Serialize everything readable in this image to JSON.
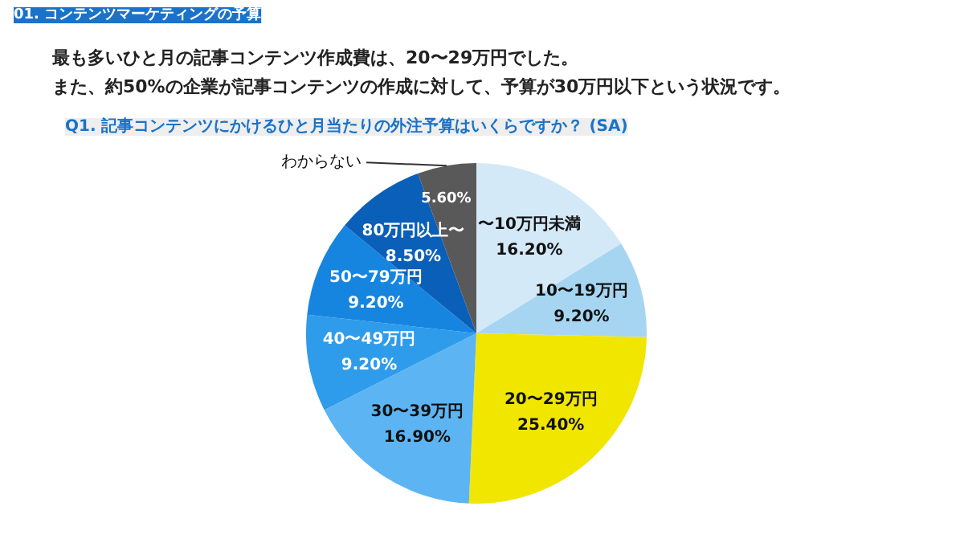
{
  "chart_data": {
    "type": "pie",
    "title": "01. コンテンツマーケティングの予算",
    "subtitle": "最も多いひと月の記事コンテンツ作成費は、20〜29万円でした。",
    "annotations": [
      "また、約50%の企業が記事コンテンツの作成に対して、予算が30万円以下という状況です。",
      "Q1. 記事コンテンツにかけるひと月当たりの外注予算はいくらですか？ (SA)"
    ],
    "categories": [
      "〜10万円未満",
      "10〜19万円",
      "20〜29万円",
      "30〜39万円",
      "40〜49万円",
      "50〜79万円",
      "80万円以上〜",
      "わからない"
    ],
    "values": [
      16.2,
      9.2,
      25.4,
      16.9,
      9.2,
      9.2,
      8.5,
      5.6
    ],
    "value_labels": [
      "16.20%",
      "9.20%",
      "25.40%",
      "16.90%",
      "9.20%",
      "9.20%",
      "8.50%",
      "5.60%"
    ],
    "colors": [
      "#d4e9f8",
      "#a6d5f1",
      "#f0e600",
      "#5cb5f2",
      "#2e9ceb",
      "#1685e0",
      "#0a5fb8",
      "#595959"
    ]
  }
}
